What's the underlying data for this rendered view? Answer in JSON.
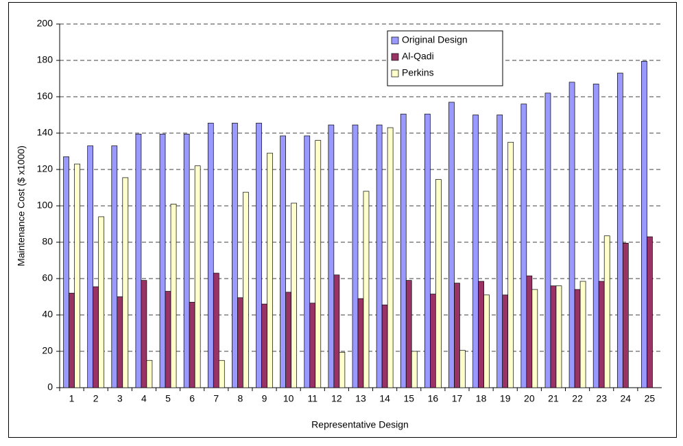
{
  "chart_data": {
    "type": "bar",
    "x_label": "Representative Design",
    "y_label": "Maintenance Cost ($ x1000)",
    "categories": [
      "1",
      "2",
      "3",
      "4",
      "5",
      "6",
      "7",
      "8",
      "9",
      "10",
      "11",
      "12",
      "13",
      "14",
      "15",
      "16",
      "17",
      "18",
      "19",
      "20",
      "21",
      "22",
      "23",
      "24",
      "25"
    ],
    "series": [
      {
        "name": "Original Design",
        "color": "#9999ff",
        "values": [
          127,
          133,
          133,
          139.5,
          139.5,
          139.5,
          145.5,
          145.5,
          145.5,
          138.5,
          138.5,
          144.5,
          144.5,
          144.5,
          150.5,
          150.5,
          157,
          150,
          150,
          156,
          162,
          168,
          167,
          173,
          179.5
        ]
      },
      {
        "name": "Al-Qadi",
        "color": "#993366",
        "values": [
          52,
          55.5,
          50,
          59,
          53,
          47,
          63,
          49.5,
          46,
          52.5,
          46.5,
          62,
          49,
          45.5,
          59,
          51.5,
          57.5,
          58.5,
          51,
          61.5,
          56,
          54,
          58.5,
          79.5,
          83
        ]
      },
      {
        "name": "Perkins",
        "color": "#ffffcc",
        "values": [
          123,
          94,
          115.5,
          15,
          101,
          122,
          15,
          107.5,
          129,
          101.5,
          136,
          19.5,
          108,
          143,
          20,
          114.5,
          20.5,
          51,
          135,
          54,
          56,
          58.5,
          83.5,
          null,
          null
        ]
      }
    ],
    "ylim": [
      0,
      200
    ],
    "yticks": [
      0,
      20,
      40,
      60,
      80,
      100,
      120,
      140,
      160,
      180,
      200
    ],
    "grid": true,
    "legend": "top-right"
  }
}
